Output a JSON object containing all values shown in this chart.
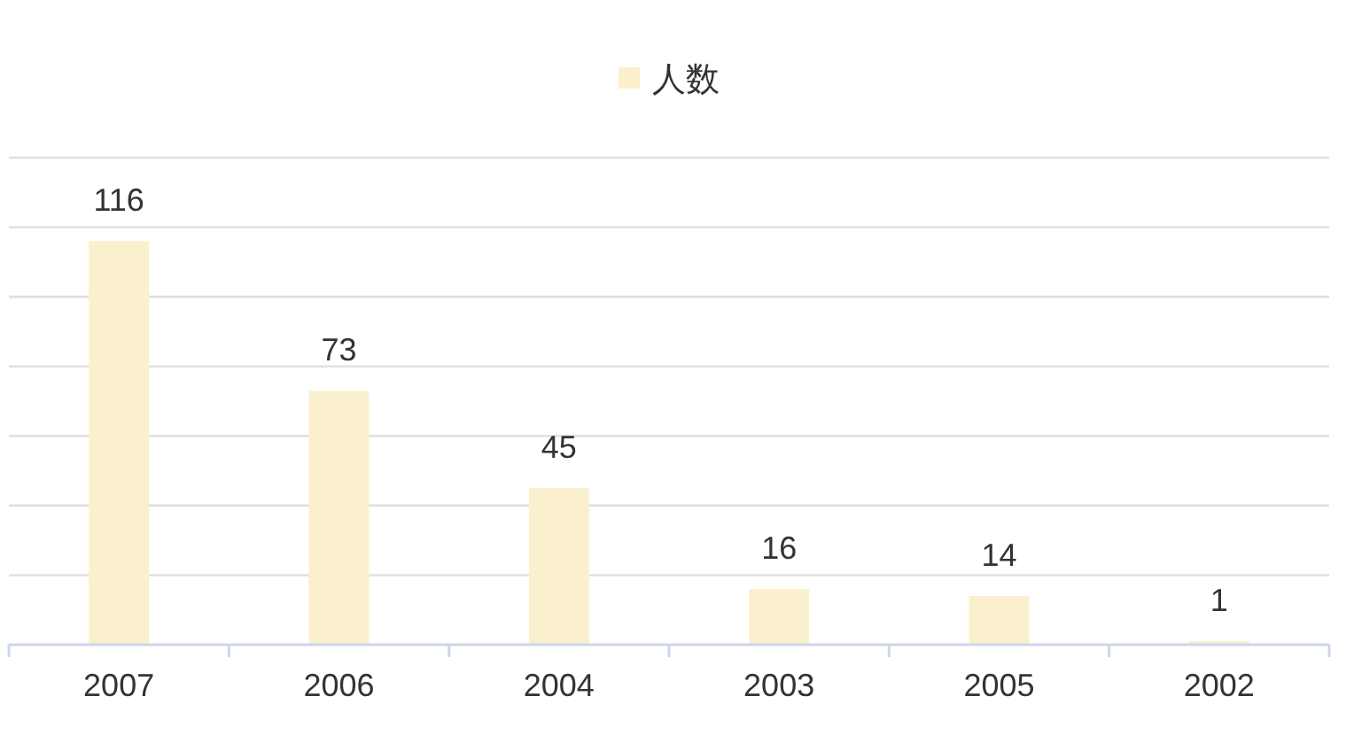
{
  "chart_data": {
    "type": "bar",
    "categories": [
      "2007",
      "2006",
      "2004",
      "2003",
      "2005",
      "2002"
    ],
    "series": [
      {
        "name": "人数",
        "color": "#fbf0cd",
        "values": [
          116,
          73,
          45,
          16,
          14,
          1
        ]
      }
    ],
    "ylim": [
      0,
      140
    ],
    "yticks": [
      {
        "value": 0,
        "label": null
      },
      {
        "value": 20,
        "label": null
      },
      {
        "value": 40,
        "label": null
      },
      {
        "value": 60,
        "label": null
      },
      {
        "value": 80,
        "label": null
      },
      {
        "value": 100,
        "label": null
      },
      {
        "value": 120,
        "label": null
      },
      {
        "value": 140,
        "label": null
      }
    ],
    "tick_labels": "x",
    "grid": "y",
    "legend": "top",
    "data_labels": true
  }
}
